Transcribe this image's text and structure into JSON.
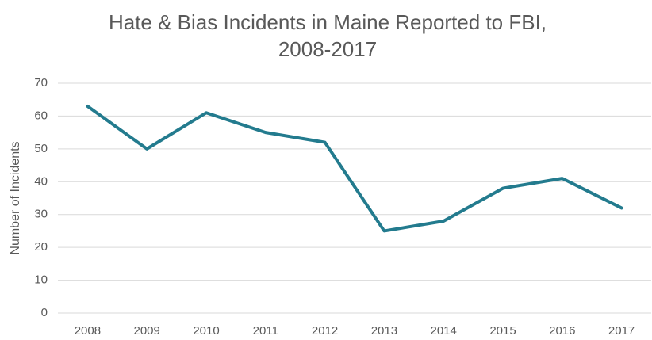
{
  "chart_data": {
    "type": "line",
    "title": [
      "Hate & Bias Incidents in Maine Reported to FBI,",
      "2008-2017"
    ],
    "y_label": "Number of Incidents",
    "categories": [
      "2008",
      "2009",
      "2010",
      "2011",
      "2012",
      "2013",
      "2014",
      "2015",
      "2016",
      "2017"
    ],
    "values": [
      63,
      50,
      61,
      55,
      52,
      25,
      28,
      38,
      41,
      32
    ],
    "color": "#237b8e",
    "ylim": [
      0,
      70
    ],
    "yticks": [
      0,
      10,
      20,
      30,
      40,
      50,
      60,
      70
    ],
    "grid": true
  }
}
